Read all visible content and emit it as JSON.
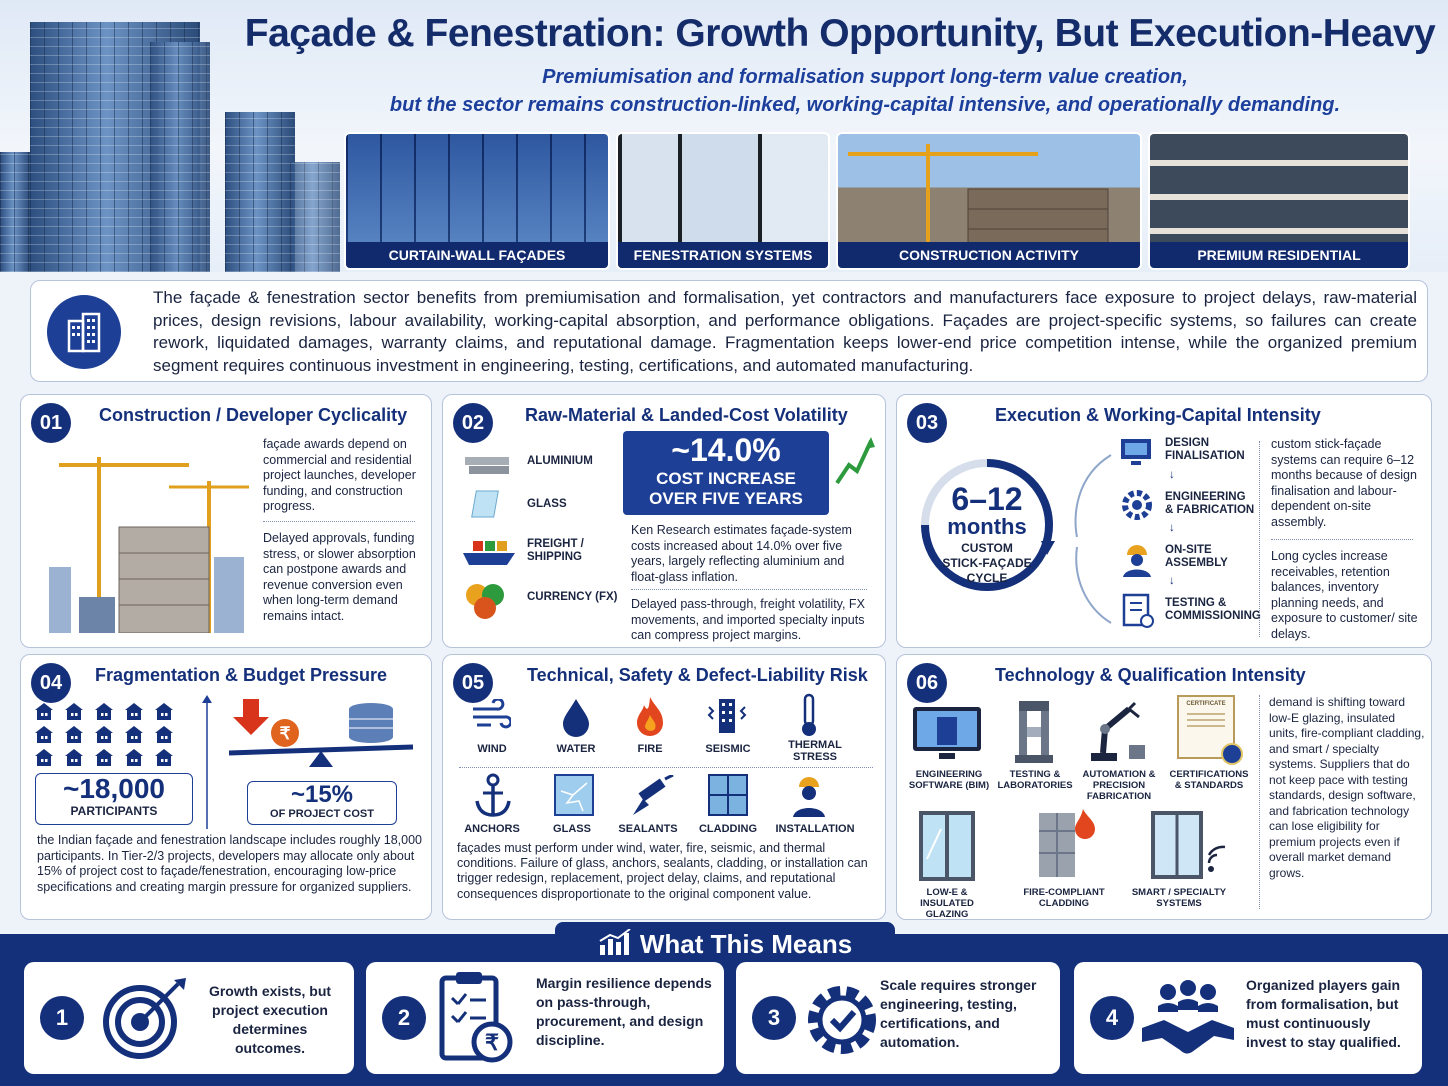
{
  "header": {
    "title": "Façade & Fenestration: Growth Opportunity, But Execution-Heavy",
    "subtitle_1": "Premiumisation and formalisation support long-term value creation,",
    "subtitle_2": "but the sector remains construction-linked, working-capital intensive, and operationally demanding."
  },
  "photos": [
    {
      "caption": "CURTAIN-WALL FAÇADES"
    },
    {
      "caption": "FENESTRATION SYSTEMS"
    },
    {
      "caption": "CONSTRUCTION ACTIVITY"
    },
    {
      "caption": "PREMIUM RESIDENTIAL"
    }
  ],
  "intro": {
    "icon": "building-icon",
    "text": "The façade & fenestration sector benefits from premiumisation and formalisation, yet contractors and manufacturers face exposure to project delays, raw-material prices, design revisions, labour availability, working-capital absorption, and performance obligations. Façades are project-specific systems, so failures can create rework, liquidated damages, warranty claims, and reputational damage. Fragmentation keeps lower-end price competition intense, while the organized premium segment requires continuous investment in engineering, testing, certifications, and automated manufacturing."
  },
  "cards": {
    "c1": {
      "num": "01",
      "title": "Construction / Developer Cyclicality",
      "p1": "façade awards depend on commercial and residential project launches, developer funding, and construction progress.",
      "p2": "Delayed approvals, funding stress, or slower absorption can postpone awards and revenue conversion even when long-term demand remains intact."
    },
    "c2": {
      "num": "02",
      "title": "Raw-Material & Landed-Cost Volatility",
      "inputs": [
        "ALUMINIUM",
        "GLASS",
        "FREIGHT / SHIPPING",
        "CURRENCY (FX)"
      ],
      "stat": "~14.0%",
      "stat_l1": "COST INCREASE",
      "stat_l2": "OVER FIVE YEARS",
      "p1": "Ken Research estimates façade-system costs increased about 14.0% over five years, largely reflecting aluminium and float-glass inflation.",
      "p2": "Delayed pass-through, freight volatility, FX movements, and imported specialty inputs can compress project margins."
    },
    "c3": {
      "num": "03",
      "title": "Execution & Working-Capital Intensity",
      "cycle_big": "6–12",
      "cycle_unit": "months",
      "cycle_l1": "CUSTOM",
      "cycle_l2": "STICK-FAÇADE",
      "cycle_l3": "CYCLE",
      "steps": [
        "DESIGN FINALISATION",
        "ENGINEERING & FABRICATION",
        "ON-SITE ASSEMBLY",
        "TESTING & COMMISSIONING"
      ],
      "p1": "custom stick-façade systems can require 6–12 months because of design finalisation and labour-dependent on-site assembly.",
      "p2": "Long cycles increase receivables, retention balances, inventory planning needs, and exposure to customer/ site delays."
    },
    "c4": {
      "num": "04",
      "title": "Fragmentation & Budget Pressure",
      "stat1": "~18,000",
      "stat1_l": "PARTICIPANTS",
      "stat2": "~15%",
      "stat2_l": "OF PROJECT COST",
      "rupee": "₹",
      "p1": "the Indian façade and fenestration landscape includes roughly 18,000 participants. In Tier-2/3 projects, developers may allocate only about 15% of project cost to façade/fenestration, encouraging low-price specifications and creating margin pressure for organized suppliers."
    },
    "c5": {
      "num": "05",
      "title": "Technical, Safety & Defect-Liability Risk",
      "row1": [
        "WIND",
        "WATER",
        "FIRE",
        "SEISMIC",
        "THERMAL STRESS"
      ],
      "row2": [
        "ANCHORS",
        "GLASS",
        "SEALANTS",
        "CLADDING",
        "INSTALLATION"
      ],
      "p1": "façades must perform under wind, water, fire, seismic, and thermal conditions. Failure of glass, anchors, sealants, cladding, or installation can trigger redesign, replacement, project delay, claims, and reputational consequences disproportionate to the original component value."
    },
    "c6": {
      "num": "06",
      "title": "Technology & Qualification Intensity",
      "row1": [
        "ENGINEERING SOFTWARE (BIM)",
        "TESTING & LABORATORIES",
        "AUTOMATION & PRECISION FABRICATION",
        "CERTIFICATIONS & STANDARDS"
      ],
      "row2": [
        "LOW-E & INSULATED GLAZING",
        "FIRE-COMPLIANT CLADDING",
        "SMART / SPECIALTY SYSTEMS"
      ],
      "cert_text": "CERTIFICATE",
      "p1": "demand is shifting toward low-E glazing, insulated units, fire-compliant cladding, and smart / specialty systems. Suppliers that do not keep pace with testing standards, design software, and fabrication technology can lose eligibility for premium projects even if overall market demand grows."
    }
  },
  "what_this_means": {
    "title": "What This Means",
    "items": [
      {
        "num": "1",
        "icon": "target-icon",
        "text": "Growth exists, but project execution determines outcomes."
      },
      {
        "num": "2",
        "icon": "clipboard-rupee-icon",
        "text": "Margin resilience depends on pass-through, procurement, and design discipline."
      },
      {
        "num": "3",
        "icon": "gear-check-icon",
        "text": "Scale requires stronger engineering, testing, certifications, and automation."
      },
      {
        "num": "4",
        "icon": "handshake-icon",
        "text": "Organized players gain from formalisation, but must continuously invest to stay qualified."
      }
    ]
  },
  "colors": {
    "navy": "#15307a",
    "accent": "#1e3f96",
    "green": "#2e9a3e",
    "red": "#d8341c"
  }
}
